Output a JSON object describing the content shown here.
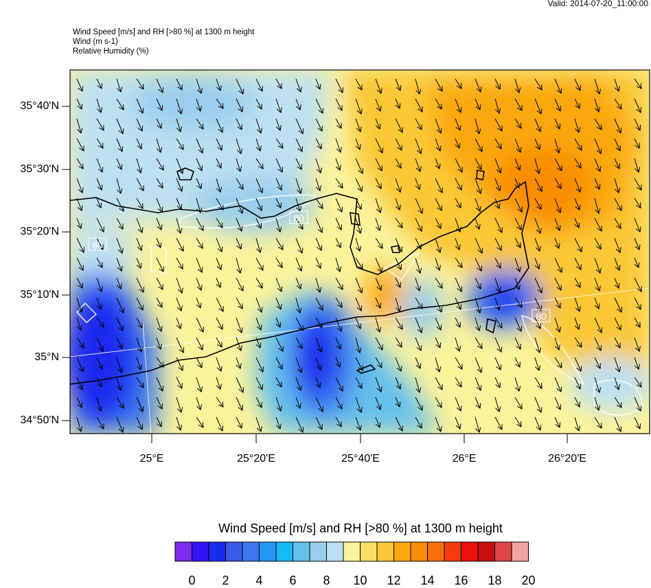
{
  "header": {
    "valid": "Valid: 2014-07-20_11:00:00",
    "line1": "Wind Speed [m/s] and RH [>80 %] at 1300 m height",
    "line2": "Wind   (m s-1)",
    "line3": "Relative Humidity   (%)"
  },
  "map": {
    "lat_labels": [
      "35°40'N",
      "35°30'N",
      "35°20'N",
      "35°10'N",
      "35°N",
      "34°50'N"
    ],
    "lon_labels": [
      "25°E",
      "25°20'E",
      "25°40'E",
      "26°E",
      "26°20'E"
    ],
    "contour_labels": [
      "80",
      "80",
      "80"
    ]
  },
  "colorbar": {
    "title": "Wind Speed [m/s] and RH [>80 %] at 1300 m height",
    "colors": [
      "#7a2ce8",
      "#3414f0",
      "#1a2af0",
      "#3a5ae6",
      "#3a78ee",
      "#2496f4",
      "#14baf4",
      "#66c0ec",
      "#9acdec",
      "#bde0f2",
      "#fbf39c",
      "#f9df68",
      "#fac834",
      "#faa80c",
      "#f98c04",
      "#f86e0c",
      "#f43c0c",
      "#e8140c",
      "#c80e0e",
      "#e04646",
      "#f2a2a2"
    ],
    "labels": [
      "0",
      "2",
      "4",
      "6",
      "8",
      "10",
      "12",
      "14",
      "16",
      "18",
      "20"
    ]
  }
}
